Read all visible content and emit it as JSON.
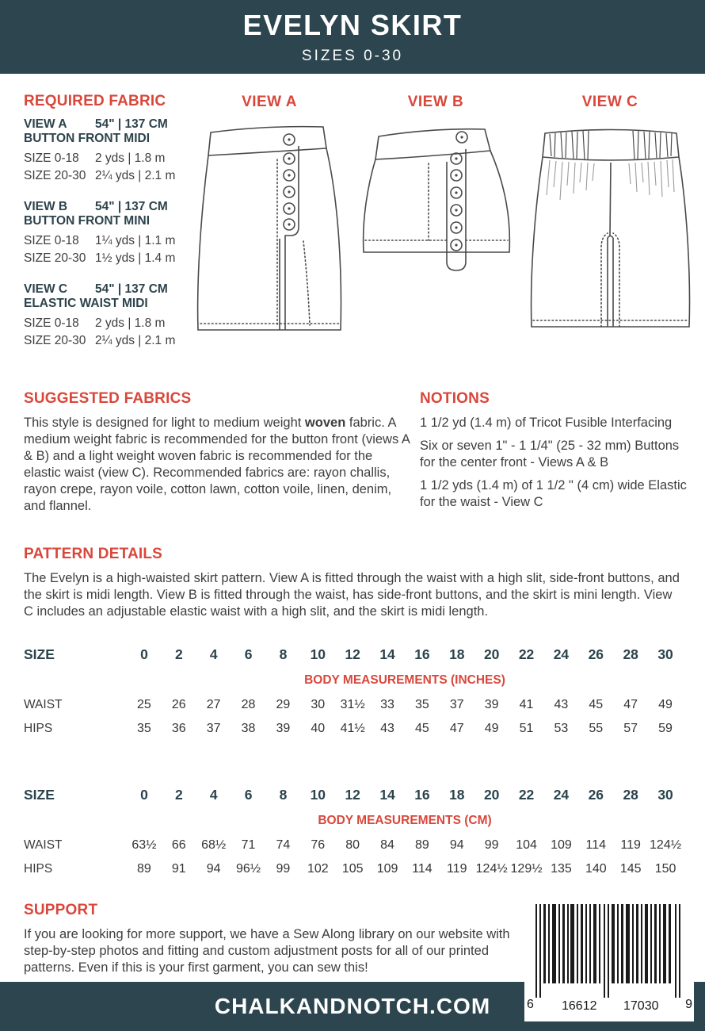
{
  "colors": {
    "teal": "#2c454e",
    "accent": "#d9473b"
  },
  "header": {
    "title": "EVELYN SKIRT",
    "subtitle": "SIZES 0-30"
  },
  "required_fabric": {
    "heading": "REQUIRED FABRIC",
    "views": [
      {
        "label": "VIEW A",
        "width": "54\" | 137 CM",
        "name": "BUTTON FRONT MIDI",
        "rows": [
          {
            "size": "SIZE 0-18",
            "amount": "2 yds | 1.8 m"
          },
          {
            "size": "SIZE 20-30",
            "amount": "2¼ yds | 2.1 m"
          }
        ]
      },
      {
        "label": "VIEW B",
        "width": "54\" | 137 CM",
        "name": "BUTTON FRONT MINI",
        "rows": [
          {
            "size": "SIZE 0-18",
            "amount": "1¼ yds | 1.1 m"
          },
          {
            "size": "SIZE 20-30",
            "amount": "1½ yds | 1.4 m"
          }
        ]
      },
      {
        "label": "VIEW C",
        "width": "54\" | 137 CM",
        "name": "ELASTIC WAIST MIDI",
        "rows": [
          {
            "size": "SIZE 0-18",
            "amount": "2 yds | 1.8 m"
          },
          {
            "size": "SIZE 20-30",
            "amount": "2¼ yds | 2.1 m"
          }
        ]
      }
    ]
  },
  "view_labels": {
    "a": "VIEW A",
    "b": "VIEW B",
    "c": "VIEW C"
  },
  "suggested_fabrics": {
    "heading": "SUGGESTED FABRICS",
    "text_pre": "This style is designed for light to medium weight ",
    "text_bold": "woven",
    "text_post": " fabric. A medium weight fabric is recommended for the button front (views A & B) and a light weight woven fabric is recommended for the elastic waist (view C). Recommended fabrics are: rayon challis, rayon crepe, rayon voile, cotton lawn, cotton voile, linen, denim, and flannel."
  },
  "notions": {
    "heading": "NOTIONS",
    "items": [
      "1 1/2 yd (1.4 m) of Tricot Fusible Interfacing",
      "Six or seven 1\" - 1 1/4\" (25 - 32 mm) Buttons for the center front - Views A & B",
      "1 1/2 yds (1.4 m) of 1 1/2 \" (4 cm) wide Elastic for the waist - View C"
    ]
  },
  "pattern_details": {
    "heading": "PATTERN DETAILS",
    "text": "The Evelyn is a high-waisted skirt pattern. View A is fitted through the waist with a high slit, side-front buttons, and the skirt is midi length. View B is fitted through the waist, has side-front buttons, and the skirt is mini length. View C includes an adjustable elastic waist with a high slit, and the skirt is midi length."
  },
  "size_chart_inches": {
    "size_label": "SIZE",
    "sizes": [
      "0",
      "2",
      "4",
      "6",
      "8",
      "10",
      "12",
      "14",
      "16",
      "18",
      "20",
      "22",
      "24",
      "26",
      "28",
      "30"
    ],
    "subheader": "BODY MEASUREMENTS (INCHES)",
    "rows": [
      {
        "label": "WAIST",
        "values": [
          "25",
          "26",
          "27",
          "28",
          "29",
          "30",
          "31½",
          "33",
          "35",
          "37",
          "39",
          "41",
          "43",
          "45",
          "47",
          "49"
        ]
      },
      {
        "label": "HIPS",
        "values": [
          "35",
          "36",
          "37",
          "38",
          "39",
          "40",
          "41½",
          "43",
          "45",
          "47",
          "49",
          "51",
          "53",
          "55",
          "57",
          "59"
        ]
      }
    ]
  },
  "size_chart_cm": {
    "size_label": "SIZE",
    "sizes": [
      "0",
      "2",
      "4",
      "6",
      "8",
      "10",
      "12",
      "14",
      "16",
      "18",
      "20",
      "22",
      "24",
      "26",
      "28",
      "30"
    ],
    "subheader": "BODY MEASUREMENTS (CM)",
    "rows": [
      {
        "label": "WAIST",
        "values": [
          "63½",
          "66",
          "68½",
          "71",
          "74",
          "76",
          "80",
          "84",
          "89",
          "94",
          "99",
          "104",
          "109",
          "114",
          "119",
          "124½"
        ]
      },
      {
        "label": "HIPS",
        "values": [
          "89",
          "91",
          "94",
          "96½",
          "99",
          "102",
          "105",
          "109",
          "114",
          "119",
          "124½",
          "129½",
          "135",
          "140",
          "145",
          "150"
        ]
      }
    ]
  },
  "support": {
    "heading": "SUPPORT",
    "text": "If you are looking for more support, we have a Sew Along library on our website with step-by-step photos and fitting and custom adjustment posts for all of our printed patterns. Even if this is your first garment, you can sew this!"
  },
  "footer": {
    "website": "CHALKANDNOTCH.COM"
  },
  "barcode": {
    "left_digit": "6",
    "group1": "16612",
    "group2": "17030",
    "right_digit": "9"
  }
}
